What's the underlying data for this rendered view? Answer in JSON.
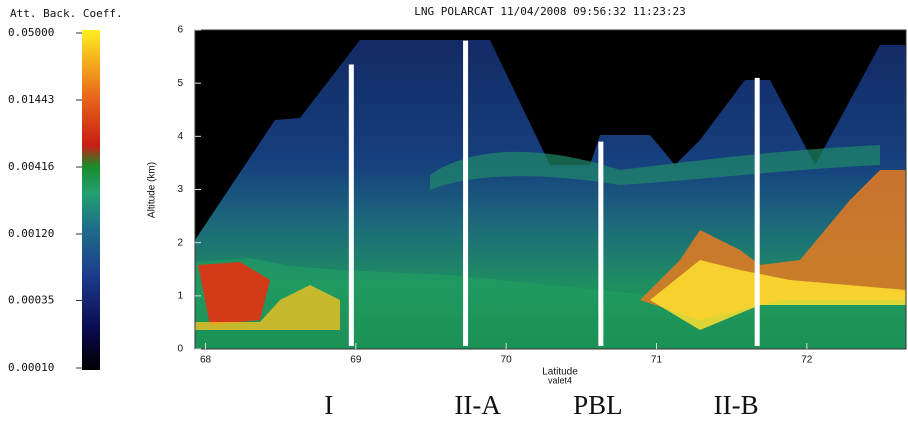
{
  "chart_data": {
    "type": "heatmap",
    "title": "LNG POLARCAT 11/04/2008 09:56:32 11:23:23",
    "xlabel": "Latitude",
    "xlabel_sub": "valet4",
    "ylabel": "Altitude (km)",
    "xlim": [
      67.93,
      72.66
    ],
    "xticks": [
      68,
      69,
      70,
      71,
      72
    ],
    "ylim": [
      0,
      6
    ],
    "yticks": [
      0,
      1,
      2,
      3,
      4,
      5,
      6
    ],
    "colorbar": {
      "label": "Att. Back. Coeff.",
      "log": true,
      "lim": [
        0.0001,
        0.05
      ],
      "ticks": [
        {
          "value": 0.05,
          "label": "0.05000"
        },
        {
          "value": 0.01443,
          "label": "0.01443"
        },
        {
          "value": 0.00416,
          "label": "0.00416"
        },
        {
          "value": 0.0012,
          "label": "0.00120"
        },
        {
          "value": 0.00035,
          "label": "0.00035"
        },
        {
          "value": 0.0001,
          "label": "0.00010"
        }
      ]
    },
    "markers": {
      "x": [
        68.97,
        69.73,
        70.63,
        71.67
      ],
      "top": [
        5.35,
        5.8,
        3.9,
        5.1
      ],
      "color": "#ffffff"
    },
    "annotations": [
      {
        "text": "I",
        "x": 68.82
      },
      {
        "text": "II-A",
        "x": 69.81
      },
      {
        "text": "PBL",
        "x": 70.61
      },
      {
        "text": "II-B",
        "x": 71.53
      }
    ]
  }
}
